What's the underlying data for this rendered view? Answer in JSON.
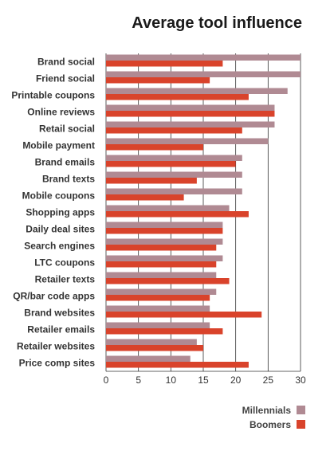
{
  "chart_data": {
    "type": "bar",
    "orientation": "horizontal",
    "title": "Average tool influence",
    "categories": [
      "Brand social",
      "Friend social",
      "Printable coupons",
      "Online reviews",
      "Retail social",
      "Mobile payment",
      "Brand emails",
      "Brand texts",
      "Mobile coupons",
      "Shopping apps",
      "Daily deal sites",
      "Search engines",
      "LTC coupons",
      "Retailer texts",
      "QR/bar code apps",
      "Brand websites",
      "Retailer emails",
      "Retailer websites",
      "Price comp sites"
    ],
    "series": [
      {
        "name": "Millennials",
        "color": "#b08a93",
        "values": [
          30,
          30,
          28,
          26,
          26,
          25,
          21,
          21,
          21,
          19,
          18,
          18,
          18,
          17,
          17,
          16,
          16,
          14,
          13
        ]
      },
      {
        "name": "Boomers",
        "color": "#d9432b",
        "values": [
          18,
          16,
          22,
          26,
          21,
          15,
          20,
          14,
          12,
          22,
          18,
          17,
          17,
          19,
          16,
          24,
          18,
          15,
          22
        ]
      }
    ],
    "xlim": [
      0,
      30
    ],
    "xticks": [
      "0",
      "5",
      "10",
      "15",
      "20",
      "25",
      "30"
    ],
    "grid": true,
    "legend": "bottom-right"
  }
}
